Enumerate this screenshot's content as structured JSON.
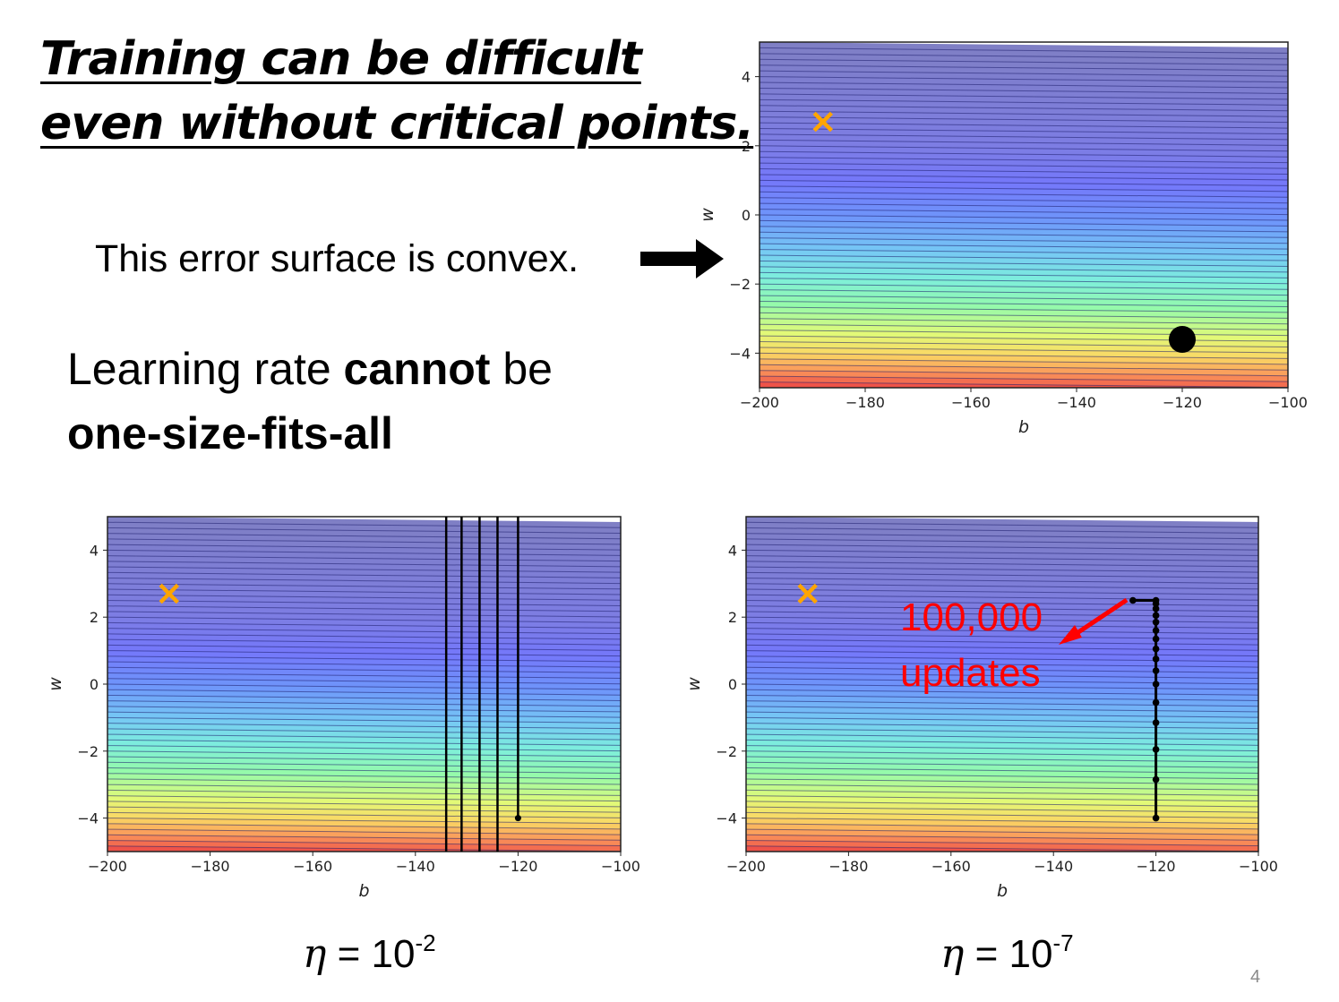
{
  "title": {
    "line1": "Training can be difficult",
    "line2": "even without critical points."
  },
  "convex_note": "This error surface is convex.",
  "learning_rate": {
    "prefix": "Learning rate ",
    "emph1": "cannot",
    "suffix": " be",
    "line2": "one-size-fits-all"
  },
  "etas": [
    {
      "symbol": "η",
      "equals": " = 10",
      "exp": "-2"
    },
    {
      "symbol": "η",
      "equals": " = 10",
      "exp": "-7"
    }
  ],
  "annotation": {
    "line1": "100,000",
    "line2": "updates",
    "color": "#ff0000"
  },
  "page_number": "4",
  "colors": {
    "target_marker": "#ffa500",
    "path": "#000000",
    "annotation": "#ff0000"
  },
  "chart_data": [
    {
      "type": "contour",
      "xlabel": "b",
      "ylabel": "w",
      "xlim": [
        -200,
        -100
      ],
      "ylim": [
        -5,
        5
      ],
      "xticks": [
        "−200",
        "−180",
        "−160",
        "−140",
        "−120",
        "−100"
      ],
      "yticks": [
        "4",
        "2",
        "0",
        "−2",
        "−4"
      ],
      "target": {
        "b": -188,
        "w": 2.7,
        "marker": "×"
      },
      "start_point": {
        "b": -120,
        "w": -3.6
      }
    },
    {
      "type": "contour",
      "xlabel": "b",
      "ylabel": "w",
      "xlim": [
        -200,
        -100
      ],
      "ylim": [
        -5,
        5
      ],
      "xticks": [
        "−200",
        "−180",
        "−160",
        "−140",
        "−120",
        "−100"
      ],
      "yticks": [
        "4",
        "2",
        "0",
        "−2",
        "−4"
      ],
      "target": {
        "b": -188,
        "w": 2.7,
        "marker": "×"
      },
      "start_point": {
        "b": -120,
        "w": -4
      },
      "oscillation_b": [
        -120,
        -124,
        -127.5,
        -131,
        -134
      ]
    },
    {
      "type": "contour",
      "xlabel": "b",
      "ylabel": "w",
      "xlim": [
        -200,
        -100
      ],
      "ylim": [
        -5,
        5
      ],
      "xticks": [
        "−200",
        "−180",
        "−160",
        "−140",
        "−120",
        "−100"
      ],
      "yticks": [
        "4",
        "2",
        "0",
        "−2",
        "−4"
      ],
      "target": {
        "b": -188,
        "w": 2.7,
        "marker": "×"
      },
      "path_points": [
        {
          "b": -120,
          "w": -4
        },
        {
          "b": -120,
          "w": -2.85
        },
        {
          "b": -120,
          "w": -1.95
        },
        {
          "b": -120,
          "w": -1.15
        },
        {
          "b": -120,
          "w": -0.55
        },
        {
          "b": -120,
          "w": 0
        },
        {
          "b": -120,
          "w": 0.4
        },
        {
          "b": -120,
          "w": 0.75
        },
        {
          "b": -120,
          "w": 1.05
        },
        {
          "b": -120,
          "w": 1.35
        },
        {
          "b": -120,
          "w": 1.6
        },
        {
          "b": -120,
          "w": 1.85
        },
        {
          "b": -120,
          "w": 2.05
        },
        {
          "b": -120,
          "w": 2.25
        },
        {
          "b": -120,
          "w": 2.4
        },
        {
          "b": -120,
          "w": 2.5
        },
        {
          "b": -124.5,
          "w": 2.5
        }
      ]
    }
  ]
}
